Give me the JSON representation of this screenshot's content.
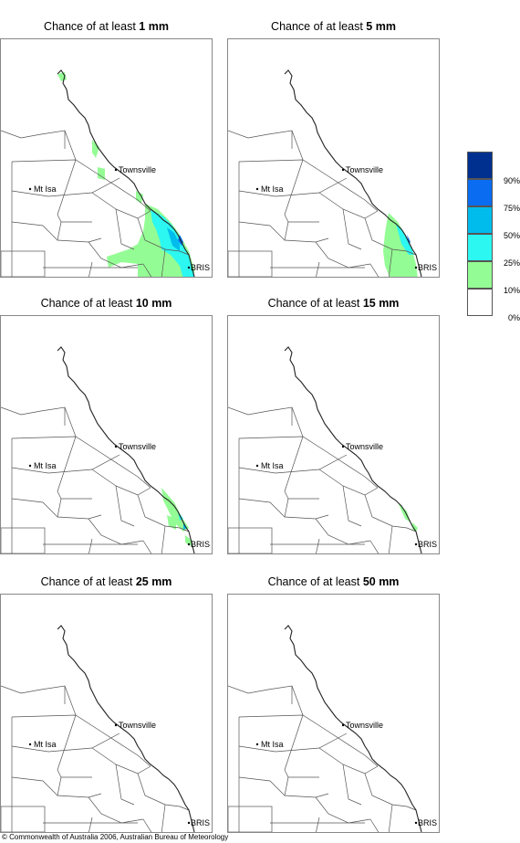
{
  "panels": [
    {
      "prefix": "Chance of at least",
      "amount": "1 mm"
    },
    {
      "prefix": "Chance of at least",
      "amount": "5 mm"
    },
    {
      "prefix": "Chance of at least",
      "amount": "10 mm"
    },
    {
      "prefix": "Chance of at least",
      "amount": "15 mm"
    },
    {
      "prefix": "Chance of at least",
      "amount": "25 mm"
    },
    {
      "prefix": "Chance of at least",
      "amount": "50 mm"
    }
  ],
  "places": {
    "townsville": "Townsville",
    "mt_isa": "Mt Isa",
    "bris": "BRIS"
  },
  "legend": {
    "labels": [
      "90%",
      "75%",
      "50%",
      "25%",
      "10%",
      "0%"
    ],
    "colors": [
      "#00308f",
      "#0a6cf0",
      "#00bcec",
      "#2cf7f0",
      "#94fc94",
      "#ffffff"
    ]
  },
  "credit": "© Commonwealth of Australia 2006, Australian Bureau of Meteorology"
}
